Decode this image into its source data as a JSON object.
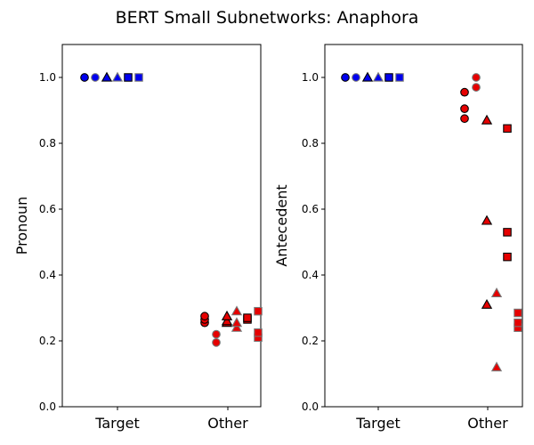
{
  "title": "BERT Small Subnetworks: Anaphora",
  "colors": {
    "blue": "#0000ee",
    "red": "#e60000",
    "dark_edge": "#000000",
    "light_edge": "#777777"
  },
  "chart_data": [
    {
      "type": "scatter",
      "ylabel": "Pronoun",
      "categories": [
        "Target",
        "Other"
      ],
      "ylim": [
        0,
        1.1
      ],
      "yticks": [
        "0.0",
        "0.2",
        "0.4",
        "0.6",
        "0.8",
        "1.0"
      ],
      "grid": false,
      "series": [
        {
          "marker": "circle",
          "edge": "dark",
          "target": [
            1.0
          ],
          "other": [
            0.255,
            0.265,
            0.275
          ]
        },
        {
          "marker": "circle",
          "edge": "light",
          "target": [
            1.0
          ],
          "other": [
            0.195,
            0.22
          ]
        },
        {
          "marker": "triangle",
          "edge": "dark",
          "target": [
            1.0
          ],
          "other": [
            0.255,
            0.26,
            0.275
          ]
        },
        {
          "marker": "triangle",
          "edge": "light",
          "target": [
            1.0
          ],
          "other": [
            0.24,
            0.255,
            0.29
          ]
        },
        {
          "marker": "square",
          "edge": "dark",
          "target": [
            1.0
          ],
          "other": [
            0.265,
            0.27
          ]
        },
        {
          "marker": "square",
          "edge": "light",
          "target": [
            1.0
          ],
          "other": [
            0.21,
            0.225,
            0.29
          ]
        }
      ]
    },
    {
      "type": "scatter",
      "ylabel": "Antecedent",
      "categories": [
        "Target",
        "Other"
      ],
      "ylim": [
        0,
        1.1
      ],
      "yticks": [
        "0.0",
        "0.2",
        "0.4",
        "0.6",
        "0.8",
        "1.0"
      ],
      "grid": false,
      "series": [
        {
          "marker": "circle",
          "edge": "dark",
          "target": [
            1.0
          ],
          "other": [
            0.875,
            0.905,
            0.955
          ]
        },
        {
          "marker": "circle",
          "edge": "light",
          "target": [
            1.0
          ],
          "other": [
            0.97,
            1.0
          ]
        },
        {
          "marker": "triangle",
          "edge": "dark",
          "target": [
            1.0
          ],
          "other": [
            0.31,
            0.565,
            0.87
          ]
        },
        {
          "marker": "triangle",
          "edge": "light",
          "target": [
            1.0
          ],
          "other": [
            0.12,
            0.345
          ]
        },
        {
          "marker": "square",
          "edge": "dark",
          "target": [
            1.0
          ],
          "other": [
            0.455,
            0.53,
            0.845
          ]
        },
        {
          "marker": "square",
          "edge": "light",
          "target": [
            1.0
          ],
          "other": [
            0.24,
            0.255,
            0.285
          ]
        }
      ]
    }
  ]
}
